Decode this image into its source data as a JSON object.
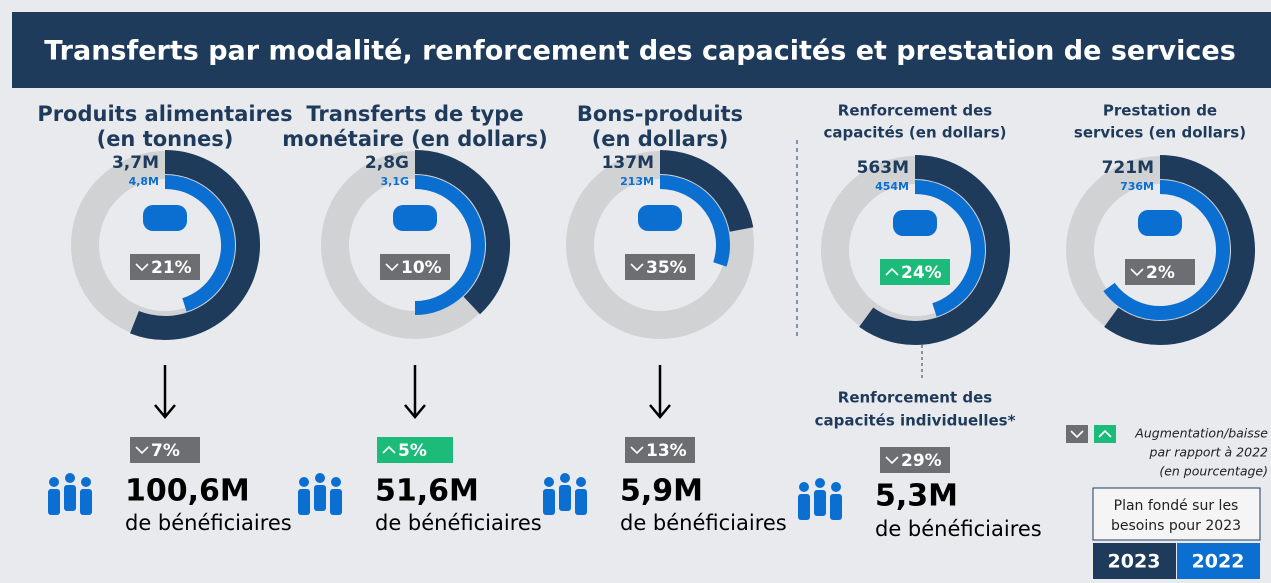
{
  "header": {
    "title": "Transferts par modalité, renforcement des capacités et prestation de services"
  },
  "panels": [
    {
      "title": [
        "Produits alimentaires",
        "(en tonnes)"
      ],
      "value_2023": "3,7M",
      "value_2022": "4,8M",
      "change": "21%",
      "direction": "down"
    },
    {
      "title": [
        "Transferts de type",
        "monétaire (en dollars)"
      ],
      "value_2023": "2,8G",
      "value_2022": "3,1G",
      "change": "10%",
      "direction": "down"
    },
    {
      "title": [
        "Bons-produits",
        "(en dollars)"
      ],
      "value_2023": "137M",
      "value_2022": "213M",
      "change": "35%",
      "direction": "down"
    },
    {
      "title": [
        "Renforcement des",
        "capacités (en dollars)"
      ],
      "value_2023": "563M",
      "value_2022": "454M",
      "change": "24%",
      "direction": "up"
    },
    {
      "title": [
        "Prestation de",
        "services (en dollars)"
      ],
      "value_2023": "721M",
      "value_2022": "736M",
      "change": "2%",
      "direction": "down"
    }
  ],
  "beneficiaries": [
    {
      "change": "7%",
      "direction": "down",
      "value": "100,6M",
      "label": "de bénéficiaires"
    },
    {
      "change": "5%",
      "direction": "up",
      "value": "51,6M",
      "label": "de bénéficiaires"
    },
    {
      "change": "13%",
      "direction": "down",
      "value": "5,9M",
      "label": "de bénéficiaires"
    },
    {
      "subtitle": [
        "Renforcement des",
        "capacités individuelles*"
      ],
      "change": "29%",
      "direction": "down",
      "value": "5,3M",
      "label": "de bénéficiaires"
    }
  ],
  "legend": {
    "text": [
      "Augmentation/baisse",
      "par rapport à 2022",
      "(en pourcentage)"
    ],
    "plan": [
      "Plan fondé sur les",
      "besoins pour 2023"
    ],
    "years": [
      "2023",
      "2022"
    ]
  }
}
